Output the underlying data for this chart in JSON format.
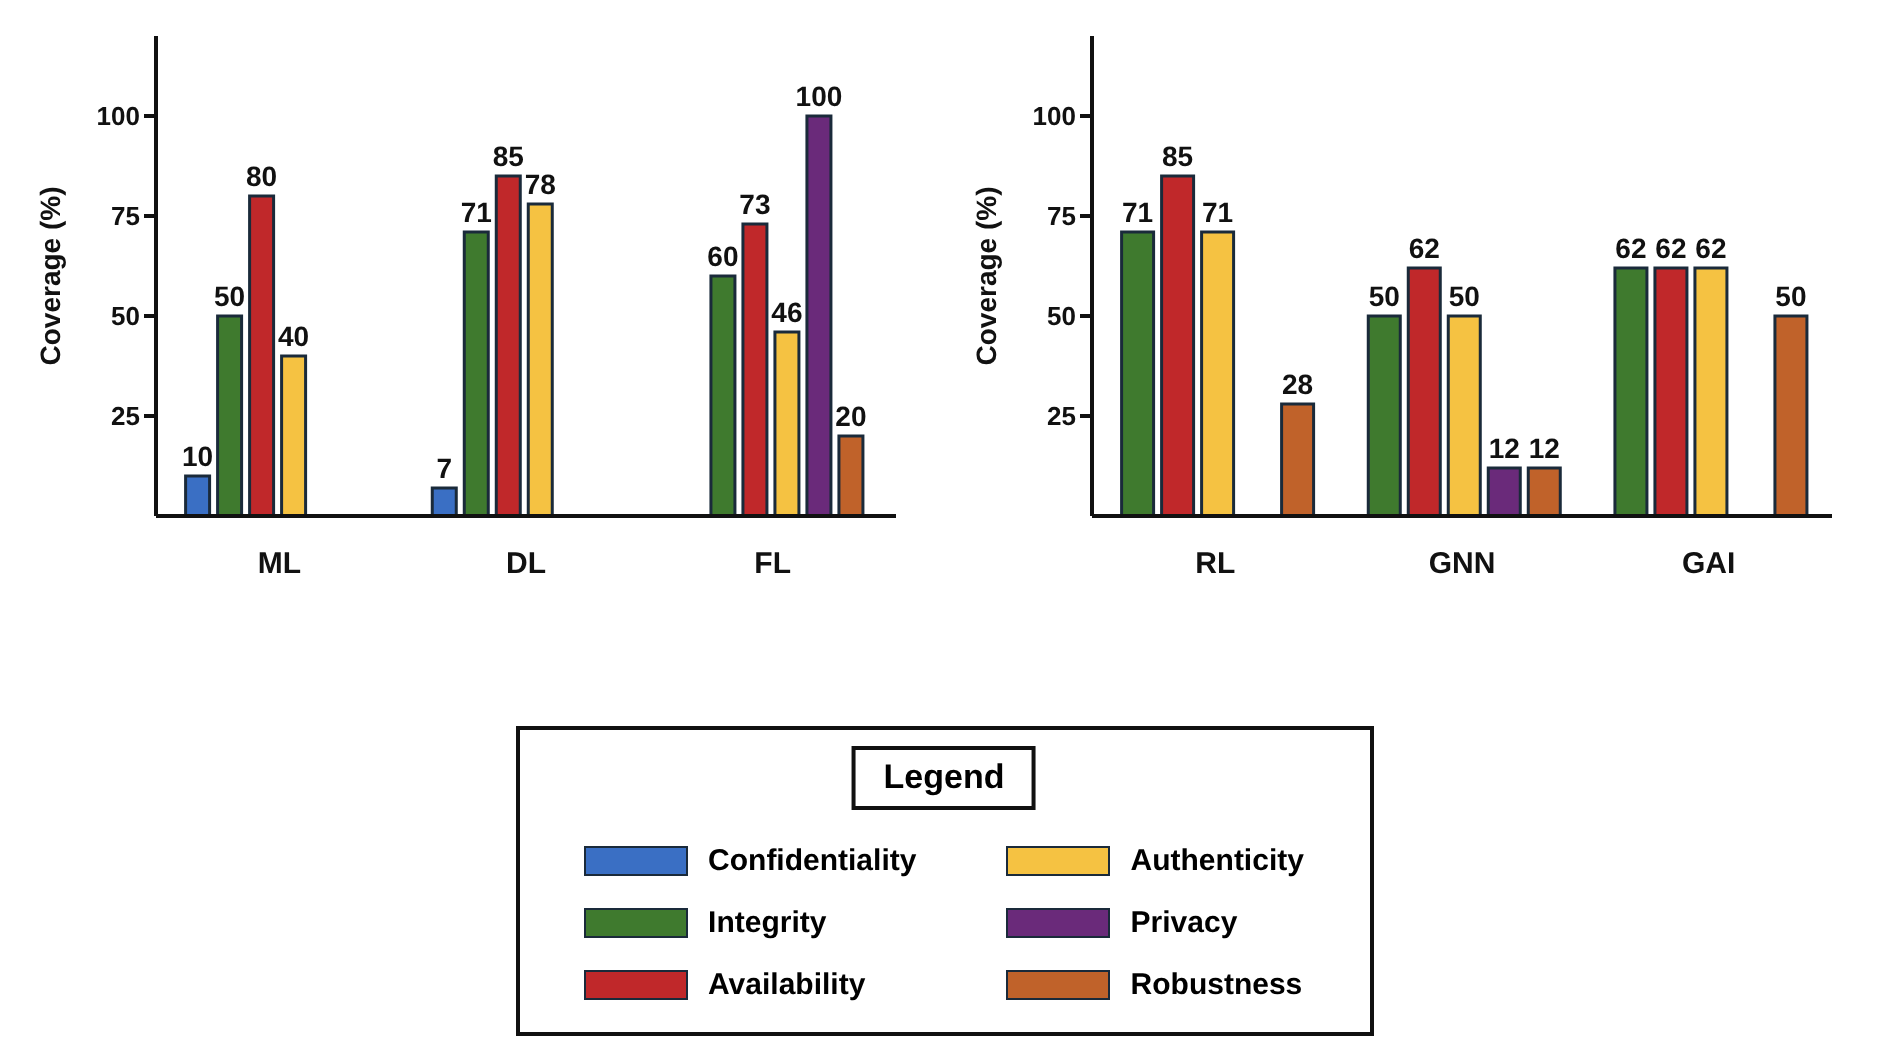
{
  "chart_data": [
    {
      "type": "bar",
      "ylabel": "Coverage (%)",
      "categories": [
        "ML",
        "DL",
        "FL"
      ],
      "ylim": [
        0,
        120
      ],
      "yticks": [
        25,
        50,
        75,
        100
      ],
      "data_labels": true,
      "grid": false,
      "legend": "bottom",
      "legend_title": "Legend",
      "series": [
        {
          "name": "Confidentiality",
          "color": "#3a6fc4",
          "values": [
            10,
            7,
            null
          ]
        },
        {
          "name": "Integrity",
          "color": "#3f7a2e",
          "values": [
            50,
            71,
            60
          ]
        },
        {
          "name": "Availability",
          "color": "#c0282a",
          "values": [
            80,
            85,
            73
          ]
        },
        {
          "name": "Authenticity",
          "color": "#f5c242",
          "values": [
            40,
            78,
            46
          ]
        },
        {
          "name": "Privacy",
          "color": "#6a2a7a",
          "values": [
            null,
            null,
            100
          ]
        },
        {
          "name": "Robustness",
          "color": "#c0622a",
          "values": [
            null,
            null,
            20
          ]
        }
      ]
    },
    {
      "type": "bar",
      "ylabel": "Coverage (%)",
      "categories": [
        "RL",
        "GNN",
        "GAI"
      ],
      "ylim": [
        0,
        120
      ],
      "yticks": [
        25,
        50,
        75,
        100
      ],
      "data_labels": true,
      "grid": false,
      "series": [
        {
          "color": "#3f7a2e",
          "values": [
            71,
            50,
            62
          ]
        },
        {
          "color": "#c0282a",
          "values": [
            85,
            62,
            62
          ]
        },
        {
          "color": "#f5c242",
          "values": [
            71,
            50,
            62
          ]
        },
        {
          "color": "#6a2a7a",
          "values": [
            null,
            12,
            null
          ]
        },
        {
          "color": "#c0622a",
          "values": [
            28,
            12,
            50
          ]
        }
      ]
    }
  ]
}
